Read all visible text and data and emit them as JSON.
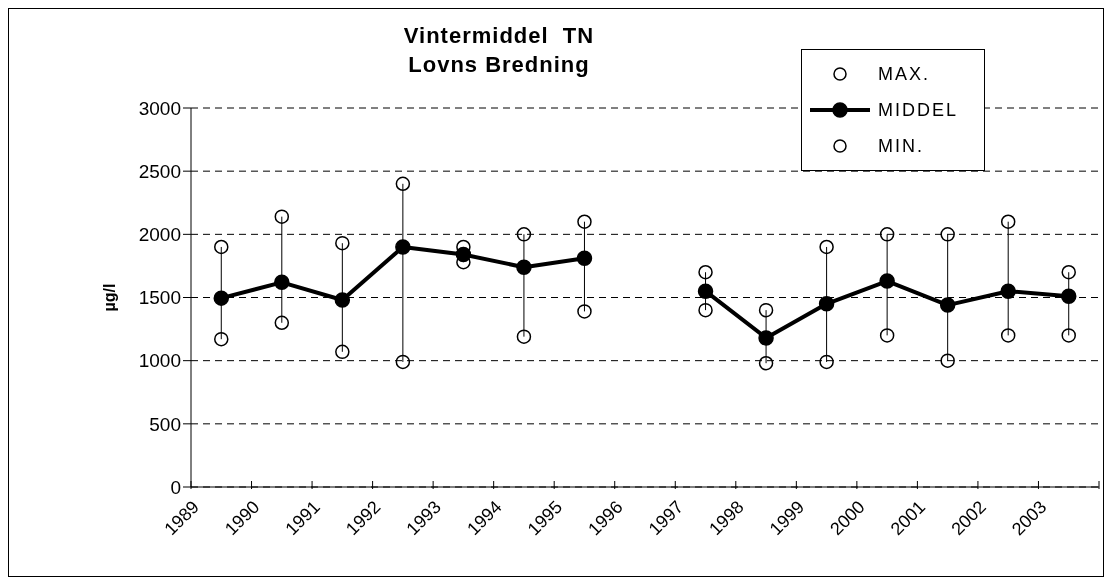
{
  "chart_data": {
    "type": "line",
    "title": "Vintermiddel  TN\nLovns Bredning",
    "ylabel": "µg/l",
    "x": [
      1989.5,
      1990.5,
      1991.5,
      1992.5,
      1993.5,
      1994.5,
      1995.5,
      1996.5,
      1997.5,
      1998.5,
      1999.5,
      2000.5,
      2001.5,
      2002.5,
      2003.5
    ],
    "xlim": [
      1989,
      2004
    ],
    "xticks": [
      1989,
      1990,
      1991,
      1992,
      1993,
      1994,
      1995,
      1996,
      1997,
      1998,
      1999,
      2000,
      2001,
      2002,
      2003,
      {
        "value": 2004,
        "label": null
      }
    ],
    "ylim": [
      0,
      3000
    ],
    "yticks": [
      0,
      500,
      1000,
      1500,
      2000,
      2500,
      3000
    ],
    "grid": "y",
    "legend": "top right",
    "marker": "circle",
    "line_style": "solid",
    "series": [
      {
        "name": "MAX.",
        "type": "scatter",
        "color": "#000000",
        "values": [
          1900,
          2140,
          1930,
          2400,
          1900,
          2000,
          2100,
          null,
          1700,
          1400,
          1900,
          2000,
          2000,
          2100,
          1700
        ]
      },
      {
        "name": "MIDDEL",
        "type": "line",
        "color": "#000000",
        "values": [
          1495,
          1620,
          1480,
          1900,
          1840,
          1740,
          1810,
          null,
          1550,
          1180,
          1450,
          1630,
          1440,
          1550,
          1510
        ],
        "errors": [
          [
            1170,
            1900
          ],
          [
            1300,
            2140
          ],
          [
            1070,
            1930
          ],
          [
            990,
            2400
          ],
          [
            1780,
            1900
          ],
          [
            1190,
            2000
          ],
          [
            1390,
            2100
          ],
          null,
          [
            1400,
            1700
          ],
          [
            980,
            1400
          ],
          [
            990,
            1900
          ],
          [
            1200,
            2000
          ],
          [
            1000,
            2000
          ],
          [
            1200,
            2100
          ],
          [
            1200,
            1700
          ]
        ]
      },
      {
        "name": "MIN.",
        "type": "scatter",
        "color": "#000000",
        "values": [
          1170,
          1300,
          1070,
          990,
          1780,
          1190,
          1390,
          null,
          1400,
          980,
          990,
          1200,
          1000,
          1200,
          1200
        ]
      }
    ]
  }
}
